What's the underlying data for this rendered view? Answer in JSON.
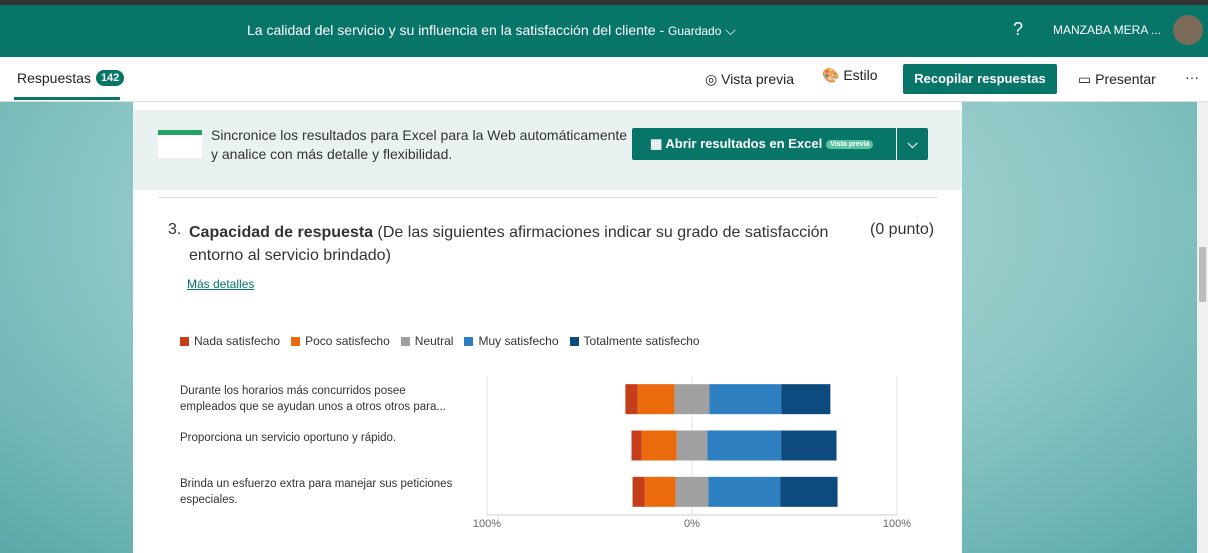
{
  "header": {
    "title": "La calidad del servicio y su influencia en la satisfacción del cliente",
    "separator": "-",
    "status": "Guardado",
    "help": "?",
    "user": "MANZABA MERA ..."
  },
  "toolbar": {
    "responses_label": "Respuestas",
    "responses_count": 142,
    "preview": "Vista previa",
    "style": "Estilo",
    "collect": "Recopilar respuestas",
    "present": "Presentar",
    "more": "···"
  },
  "banner": {
    "text": "Sincronice los resultados para Excel para la Web automáticamente y analice con más detalle y flexibilidad.",
    "button": "Abrir resultados en Excel",
    "badge": "Vista previa"
  },
  "question": {
    "number": "3.",
    "title": "Capacidad de respuesta",
    "description": "(De las siguientes afirmaciones indicar su grado de satisfacción entorno al servicio brindado)",
    "points": "(0 punto)",
    "details": "Más detalles"
  },
  "chart_data": {
    "type": "diverging-bar",
    "categories": [
      "Durante los horarios más concurridos posee empleados que se ayudan unos a otros otros para...",
      "Proporciona un servicio oportuno y rápido.",
      "Brinda un esfuerzo extra para manejar sus peticiones especiales."
    ],
    "series": [
      {
        "name": "Nada satisfecho",
        "color": "#c43e1c",
        "values": [
          6,
          5,
          6
        ]
      },
      {
        "name": "Poco satisfecho",
        "color": "#ea6a0c",
        "values": [
          18,
          17,
          15
        ]
      },
      {
        "name": "Neutral",
        "color": "#a0a0a0",
        "values": [
          17,
          15,
          16
        ]
      },
      {
        "name": "Muy satisfecho",
        "color": "#2e7fbf",
        "values": [
          35,
          36,
          35
        ]
      },
      {
        "name": "Totalmente satisfecho",
        "color": "#0d4a7e",
        "values": [
          24,
          27,
          28
        ]
      }
    ],
    "xlim": [
      -100,
      100
    ],
    "xticks": [
      {
        "value": -100,
        "label": "100%"
      },
      {
        "value": 0,
        "label": "0%"
      },
      {
        "value": 100,
        "label": "100%"
      }
    ],
    "grid": true,
    "legend": "top"
  }
}
